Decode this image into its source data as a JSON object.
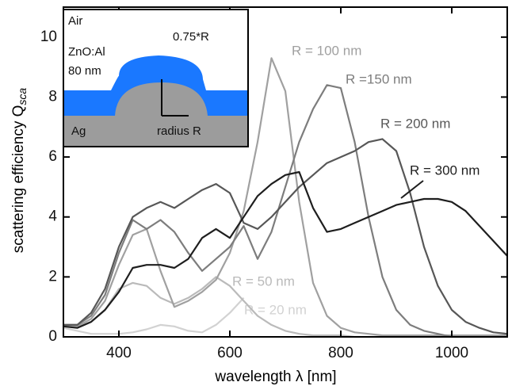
{
  "chart_data": {
    "type": "line",
    "x_label": "wavelength λ [nm]",
    "y_label": "scattering efficiency Q",
    "y_label_sub": "sca",
    "annotations": [
      "Air",
      "ZnO:Al",
      "80 nm",
      "0.75*R",
      "Ag",
      "radius R"
    ],
    "x": [
      300,
      325,
      350,
      375,
      400,
      425,
      450,
      475,
      500,
      525,
      550,
      575,
      600,
      625,
      650,
      675,
      700,
      725,
      750,
      775,
      800,
      825,
      850,
      875,
      900,
      925,
      950,
      975,
      1000,
      1025,
      1050,
      1075,
      1100
    ],
    "xlim": [
      300,
      1100
    ],
    "xticks": [
      400,
      600,
      800,
      1000
    ],
    "ylim": [
      0,
      11
    ],
    "yticks": [
      0,
      2,
      4,
      6,
      8,
      10
    ],
    "series": [
      {
        "name": "R = 20 nm",
        "color": "#d2d2d2",
        "values": [
          0.3,
          0.2,
          0.1,
          0.1,
          0.1,
          0.15,
          0.25,
          0.4,
          0.35,
          0.2,
          0.15,
          0.4,
          0.8,
          1.3,
          null,
          null,
          null,
          null,
          null,
          null,
          null,
          null,
          null,
          null,
          null,
          null,
          null,
          null,
          null,
          null,
          null,
          null,
          null
        ]
      },
      {
        "name": "R = 50 nm",
        "color": "#bababa",
        "values": [
          0.4,
          0.35,
          0.5,
          0.9,
          1.6,
          1.8,
          1.7,
          1.3,
          1.1,
          1.3,
          1.6,
          2.0,
          1.7,
          1.2,
          0.7,
          0.4,
          0.2,
          0.1,
          0.05,
          0.05,
          0.05,
          0,
          0,
          0,
          0,
          0,
          0,
          0,
          0,
          0,
          0,
          0,
          0
        ]
      },
      {
        "name": "R = 100 nm",
        "color": "#a0a0a0",
        "values": [
          0.4,
          0.35,
          0.6,
          1.2,
          2.4,
          3.4,
          3.6,
          2.2,
          1.0,
          1.2,
          1.5,
          1.9,
          2.8,
          4.2,
          6.5,
          9.3,
          8.2,
          4.5,
          1.8,
          0.7,
          0.3,
          0.15,
          0.1,
          0.05,
          0.05,
          0.05,
          0.05,
          0.05,
          0.05,
          0.05,
          0.05,
          0.05,
          0.05
        ]
      },
      {
        "name": "R =150 nm",
        "color": "#7d7d7d",
        "values": [
          0.4,
          0.4,
          0.7,
          1.4,
          2.8,
          3.9,
          3.6,
          3.9,
          3.5,
          2.8,
          2.2,
          2.6,
          3.0,
          3.7,
          2.6,
          3.5,
          5.0,
          6.5,
          7.6,
          8.4,
          8.3,
          6.5,
          4.0,
          2.0,
          0.9,
          0.4,
          0.2,
          0.1,
          0,
          0,
          0,
          0,
          0
        ]
      },
      {
        "name": "R = 200 nm",
        "color": "#575757",
        "values": [
          0.4,
          0.4,
          0.8,
          1.6,
          3.0,
          4.0,
          4.3,
          4.5,
          4.3,
          4.6,
          4.9,
          5.1,
          4.8,
          3.8,
          3.6,
          4.0,
          4.5,
          5.0,
          5.4,
          5.8,
          6.0,
          6.2,
          6.5,
          6.6,
          6.2,
          4.8,
          3.0,
          1.7,
          0.9,
          0.5,
          0.3,
          0.15,
          0.1
        ]
      },
      {
        "name": "R = 300 nm",
        "color": "#1e1e1e",
        "values": [
          0.35,
          0.3,
          0.5,
          0.9,
          1.5,
          2.3,
          2.4,
          2.4,
          2.3,
          2.6,
          3.3,
          3.6,
          3.3,
          4.0,
          4.7,
          5.1,
          5.4,
          5.5,
          4.3,
          3.5,
          3.6,
          3.8,
          4.0,
          4.2,
          4.4,
          4.5,
          4.6,
          4.6,
          4.5,
          4.2,
          3.7,
          3.2,
          2.7
        ]
      }
    ]
  }
}
